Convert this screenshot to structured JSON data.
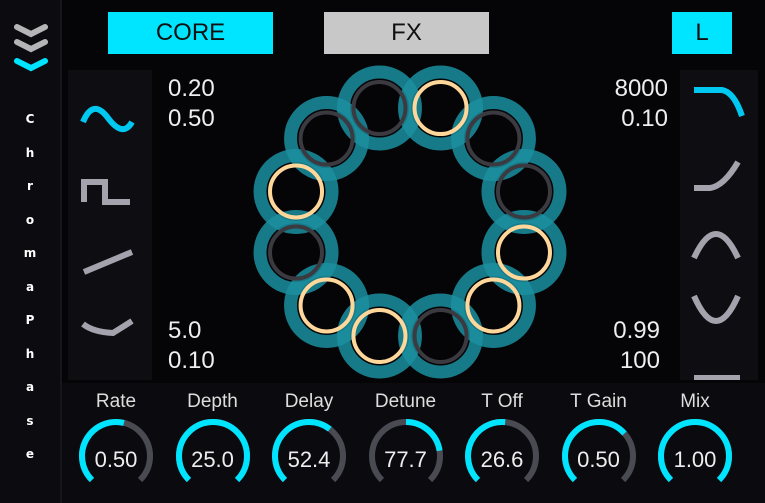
{
  "sidebar": {
    "title_letters": [
      "C",
      "h",
      "r",
      "o",
      "m",
      "a",
      "P",
      "h",
      "a",
      "s",
      "e"
    ],
    "menu_icon": "triple-chevron-down-icon"
  },
  "tabs": {
    "core": "CORE",
    "fx": "FX",
    "channel": "L"
  },
  "colors": {
    "accent": "#00e5ff",
    "teal": "#1b8fa0",
    "orange": "#ffd79a",
    "inactive": "#a4a3ad"
  },
  "lfo_shapes": [
    "sine-wave-icon",
    "square-wave-icon",
    "saw-wave-icon",
    "curve-wave-icon"
  ],
  "filter_shapes": [
    "lowpass-icon",
    "highpass-icon",
    "bandpass-icon",
    "notch-icon",
    "flat-icon"
  ],
  "readouts": {
    "top_left": [
      "0.20",
      "0.50"
    ],
    "bottom_left": [
      "5.0",
      "0.10"
    ],
    "top_right": [
      "8000",
      "0.10"
    ],
    "bottom_right": [
      "0.99",
      "100"
    ]
  },
  "knobs": [
    {
      "label": "Rate",
      "value": "0.50",
      "fill": 0.55
    },
    {
      "label": "Depth",
      "value": "25.0",
      "fill": 1.0
    },
    {
      "label": "Delay",
      "value": "52.4",
      "fill": 0.64
    },
    {
      "label": "Detune",
      "value": "77.7",
      "fill": 0.8,
      "bipolar": true
    },
    {
      "label": "T Off",
      "value": "26.6",
      "fill": 0.52
    },
    {
      "label": "T Gain",
      "value": "0.50",
      "fill": 0.68
    },
    {
      "label": "Mix",
      "value": "1.00",
      "fill": 1.0
    }
  ]
}
